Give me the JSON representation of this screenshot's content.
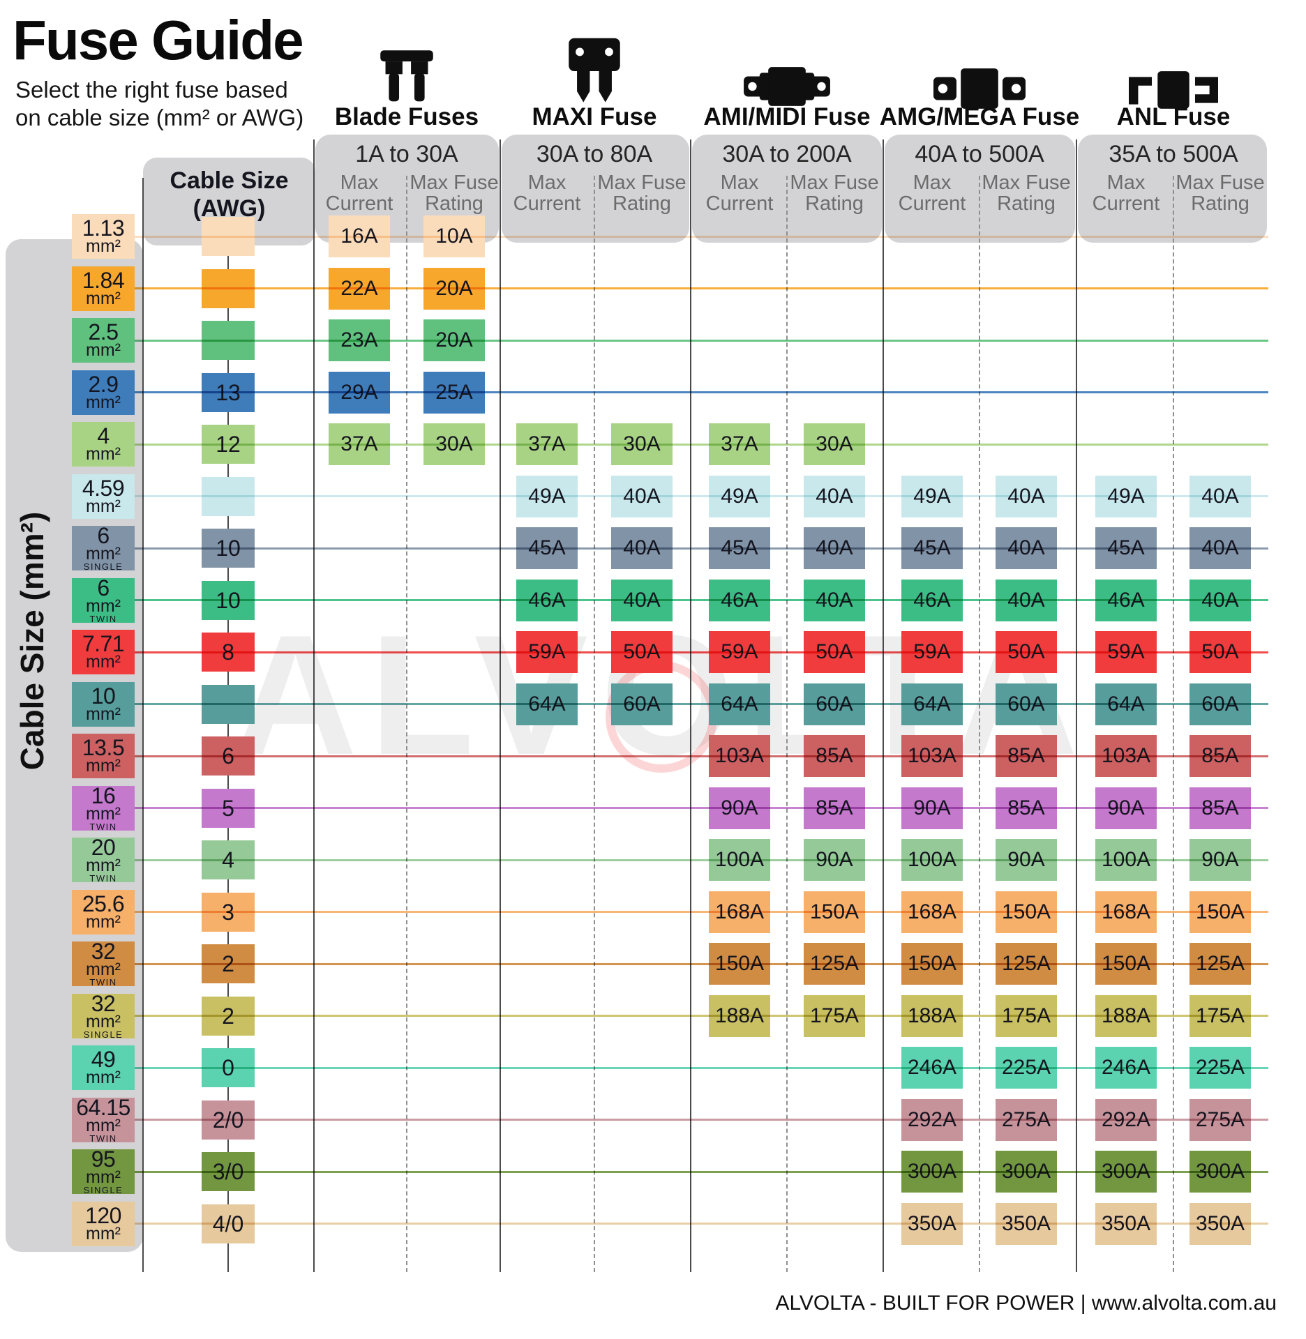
{
  "title": "Fuse Guide",
  "subtitle_lines": [
    "Select the right fuse based",
    "on cable size (mm² or AWG)"
  ],
  "left_axis_label": "Cable Size (mm²)",
  "awg_header": {
    "line1": "Cable Size",
    "line2": "(AWG)"
  },
  "footer": "ALVOLTA - BUILT FOR POWER | www.alvolta.com.au",
  "watermark": {
    "text": "ALVOLTA"
  },
  "colors": {
    "panel": "#d3d3d5",
    "grid_line": "#4a4a4a",
    "dashed_line": "#8f8f8f",
    "box_text": "#15151f",
    "subheader_text": "#6c6c6c",
    "watermark_ring": "#ed1c24"
  },
  "subcolumns": [
    {
      "id": "current",
      "lines": [
        "Max",
        "Current"
      ]
    },
    {
      "id": "rating",
      "lines": [
        "Max Fuse",
        "Rating"
      ]
    }
  ],
  "chart_data": {
    "type": "table",
    "title": "Fuse Guide",
    "fuse_types": [
      {
        "id": "blade",
        "name": "Blade Fuses",
        "range": "1A to 30A",
        "icon": "blade-fuse-icon"
      },
      {
        "id": "maxi",
        "name": "MAXI Fuse",
        "range": "30A to 80A",
        "icon": "maxi-fuse-icon"
      },
      {
        "id": "ami",
        "name": "AMI/MIDI Fuse",
        "range": "30A to 200A",
        "icon": "ami-midi-fuse-icon"
      },
      {
        "id": "amg",
        "name": "AMG/MEGA Fuse",
        "range": "40A to 500A",
        "icon": "amg-mega-fuse-icon"
      },
      {
        "id": "anl",
        "name": "ANL Fuse",
        "range": "35A to 500A",
        "icon": "anl-fuse-icon"
      }
    ],
    "columns_per_type": [
      "Max Current",
      "Max Fuse Rating"
    ],
    "rows": [
      {
        "cable_mm2": "1.13",
        "variant": "",
        "awg": "",
        "color": "#fadcba",
        "values": {
          "blade": [
            "16A",
            "10A"
          ]
        }
      },
      {
        "cable_mm2": "1.84",
        "variant": "",
        "awg": "",
        "color": "#f7a72b",
        "values": {
          "blade": [
            "22A",
            "20A"
          ]
        }
      },
      {
        "cable_mm2": "2.5",
        "variant": "",
        "awg": "",
        "color": "#5fc17d",
        "values": {
          "blade": [
            "23A",
            "20A"
          ]
        }
      },
      {
        "cable_mm2": "2.9",
        "variant": "",
        "awg": "13",
        "color": "#3e7cba",
        "values": {
          "blade": [
            "29A",
            "25A"
          ]
        }
      },
      {
        "cable_mm2": "4",
        "variant": "",
        "awg": "12",
        "color": "#a9d384",
        "values": {
          "blade": [
            "37A",
            "30A"
          ],
          "maxi": [
            "37A",
            "30A"
          ],
          "ami": [
            "37A",
            "30A"
          ]
        }
      },
      {
        "cable_mm2": "4.59",
        "variant": "",
        "awg": "",
        "color": "#c9e8ec",
        "values": {
          "maxi": [
            "49A",
            "40A"
          ],
          "ami": [
            "49A",
            "40A"
          ],
          "amg": [
            "49A",
            "40A"
          ],
          "anl": [
            "49A",
            "40A"
          ]
        }
      },
      {
        "cable_mm2": "6",
        "variant": "SINGLE",
        "awg": "10",
        "color": "#8193a7",
        "values": {
          "maxi": [
            "45A",
            "40A"
          ],
          "ami": [
            "45A",
            "40A"
          ],
          "amg": [
            "45A",
            "40A"
          ],
          "anl": [
            "45A",
            "40A"
          ]
        }
      },
      {
        "cable_mm2": "6",
        "variant": "TWIN",
        "awg": "10",
        "color": "#3cbd85",
        "values": {
          "maxi": [
            "46A",
            "40A"
          ],
          "ami": [
            "46A",
            "40A"
          ],
          "amg": [
            "46A",
            "40A"
          ],
          "anl": [
            "46A",
            "40A"
          ]
        }
      },
      {
        "cable_mm2": "7.71",
        "variant": "",
        "awg": "8",
        "color": "#f13c3e",
        "values": {
          "maxi": [
            "59A",
            "50A"
          ],
          "ami": [
            "59A",
            "50A"
          ],
          "amg": [
            "59A",
            "50A"
          ],
          "anl": [
            "59A",
            "50A"
          ]
        }
      },
      {
        "cable_mm2": "10",
        "variant": "",
        "awg": "",
        "color": "#569d9b",
        "values": {
          "maxi": [
            "64A",
            "60A"
          ],
          "ami": [
            "64A",
            "60A"
          ],
          "amg": [
            "64A",
            "60A"
          ],
          "anl": [
            "64A",
            "60A"
          ]
        }
      },
      {
        "cable_mm2": "13.5",
        "variant": "",
        "awg": "6",
        "color": "#cd6060",
        "values": {
          "ami": [
            "103A",
            "85A"
          ],
          "amg": [
            "103A",
            "85A"
          ],
          "anl": [
            "103A",
            "85A"
          ]
        }
      },
      {
        "cable_mm2": "16",
        "variant": "TWIN",
        "awg": "5",
        "color": "#c479cc",
        "values": {
          "ami": [
            "90A",
            "85A"
          ],
          "amg": [
            "90A",
            "85A"
          ],
          "anl": [
            "90A",
            "85A"
          ]
        }
      },
      {
        "cable_mm2": "20",
        "variant": "TWIN",
        "awg": "4",
        "color": "#96c998",
        "values": {
          "ami": [
            "100A",
            "90A"
          ],
          "amg": [
            "100A",
            "90A"
          ],
          "anl": [
            "100A",
            "90A"
          ]
        }
      },
      {
        "cable_mm2": "25.6",
        "variant": "",
        "awg": "3",
        "color": "#f6b06a",
        "values": {
          "ami": [
            "168A",
            "150A"
          ],
          "amg": [
            "168A",
            "150A"
          ],
          "anl": [
            "168A",
            "150A"
          ]
        }
      },
      {
        "cable_mm2": "32",
        "variant": "TWIN",
        "awg": "2",
        "color": "#d08c42",
        "values": {
          "ami": [
            "150A",
            "125A"
          ],
          "amg": [
            "150A",
            "125A"
          ],
          "anl": [
            "150A",
            "125A"
          ]
        }
      },
      {
        "cable_mm2": "32",
        "variant": "SINGLE",
        "awg": "2",
        "color": "#c9c063",
        "values": {
          "ami": [
            "188A",
            "175A"
          ],
          "amg": [
            "188A",
            "175A"
          ],
          "anl": [
            "188A",
            "175A"
          ]
        }
      },
      {
        "cable_mm2": "49",
        "variant": "",
        "awg": "0",
        "color": "#5bd2b0",
        "values": {
          "amg": [
            "246A",
            "225A"
          ],
          "anl": [
            "246A",
            "225A"
          ]
        }
      },
      {
        "cable_mm2": "64.15",
        "variant": "TWIN",
        "awg": "2/0",
        "color": "#c6939b",
        "values": {
          "amg": [
            "292A",
            "275A"
          ],
          "anl": [
            "292A",
            "275A"
          ]
        }
      },
      {
        "cable_mm2": "95",
        "variant": "SINGLE",
        "awg": "3/0",
        "color": "#729740",
        "values": {
          "amg": [
            "300A",
            "300A"
          ],
          "anl": [
            "300A",
            "300A"
          ]
        }
      },
      {
        "cable_mm2": "120",
        "variant": "",
        "awg": "4/0",
        "color": "#e6c99d",
        "values": {
          "amg": [
            "350A",
            "350A"
          ],
          "anl": [
            "350A",
            "350A"
          ]
        }
      }
    ]
  }
}
